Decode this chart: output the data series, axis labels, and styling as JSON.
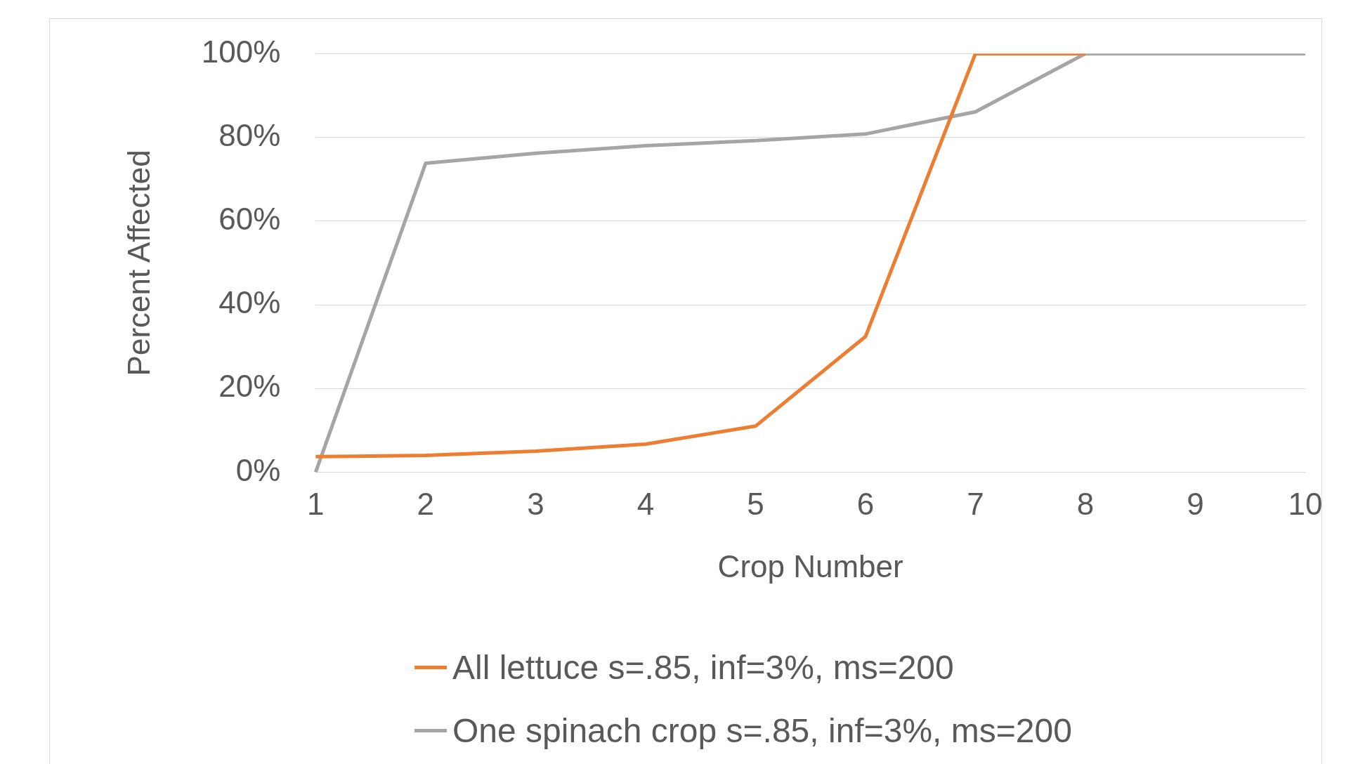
{
  "chart_data": {
    "type": "line",
    "xlabel": "Crop Number",
    "ylabel": "Percent Affected",
    "categories": [
      "1",
      "2",
      "3",
      "4",
      "5",
      "6",
      "7",
      "8",
      "9",
      "10"
    ],
    "ylim": [
      0,
      100
    ],
    "yticks": [
      {
        "value": 0,
        "label": "0%"
      },
      {
        "value": 20,
        "label": "20%"
      },
      {
        "value": 40,
        "label": "40%"
      },
      {
        "value": 60,
        "label": "60%"
      },
      {
        "value": 80,
        "label": "80%"
      },
      {
        "value": 100,
        "label": "100%"
      }
    ],
    "grid": "y",
    "legend": "bottom",
    "marker": "none",
    "line_style": "solid",
    "series": [
      {
        "name": "All lettuce s=.85, inf=3%, ms=200",
        "color": "#ed7d31",
        "values": [
          3.7,
          4,
          5,
          6.7,
          11,
          32.4,
          100,
          100,
          null,
          null
        ]
      },
      {
        "name": "One spinach crop s=.85, inf=3%, ms=200",
        "color": "#a5a5a5",
        "values": [
          0,
          73.8,
          76.2,
          78,
          79.2,
          80.8,
          86.1,
          100,
          100,
          100
        ]
      }
    ]
  }
}
